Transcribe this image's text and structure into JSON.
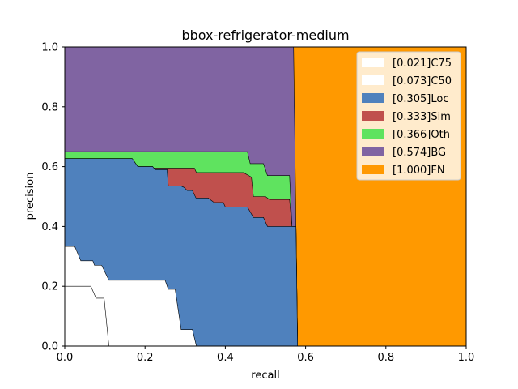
{
  "chart_data": {
    "type": "area",
    "title": "bbox-refrigerator-medium",
    "xlabel": "recall",
    "ylabel": "precision",
    "xlim": [
      0,
      1
    ],
    "ylim": [
      0,
      1
    ],
    "x_ticks": [
      "0.0",
      "0.2",
      "0.4",
      "0.6",
      "0.8",
      "1.0"
    ],
    "y_ticks": [
      "0.0",
      "0.2",
      "0.4",
      "0.6",
      "0.8",
      "1.0"
    ],
    "legend_position": "top-right",
    "series": [
      {
        "name": "[1.000]FN",
        "color": "#ff9900",
        "points": [
          [
            0,
            1
          ],
          [
            1,
            1
          ],
          [
            1,
            0
          ],
          [
            0,
            0
          ]
        ]
      },
      {
        "name": "[0.574]BG",
        "color": "#8064a2",
        "points": [
          [
            0,
            1
          ],
          [
            0.57,
            1
          ],
          [
            0.576,
            0.4
          ],
          [
            0.58,
            0
          ],
          [
            0,
            0
          ]
        ]
      },
      {
        "name": "[0.366]Oth",
        "color": "#5fe35f",
        "points": [
          [
            0,
            0.65
          ],
          [
            0.455,
            0.65
          ],
          [
            0.462,
            0.61
          ],
          [
            0.495,
            0.61
          ],
          [
            0.505,
            0.57
          ],
          [
            0.56,
            0.57
          ],
          [
            0.566,
            0.4
          ],
          [
            0.576,
            0.4
          ],
          [
            0.58,
            0
          ],
          [
            0,
            0
          ]
        ]
      },
      {
        "name": "[0.333]Sim",
        "color": "#c0504d",
        "points": [
          [
            0,
            0.627
          ],
          [
            0.168,
            0.627
          ],
          [
            0.182,
            0.6
          ],
          [
            0.219,
            0.6
          ],
          [
            0.221,
            0.595
          ],
          [
            0.323,
            0.595
          ],
          [
            0.328,
            0.58
          ],
          [
            0.445,
            0.58
          ],
          [
            0.465,
            0.565
          ],
          [
            0.47,
            0.5
          ],
          [
            0.5,
            0.5
          ],
          [
            0.51,
            0.49
          ],
          [
            0.56,
            0.49
          ],
          [
            0.566,
            0.4
          ],
          [
            0.576,
            0.4
          ],
          [
            0.58,
            0
          ],
          [
            0,
            0
          ]
        ]
      },
      {
        "name": "[0.305]Loc",
        "color": "#4f81bd",
        "points": [
          [
            0,
            0.627
          ],
          [
            0.168,
            0.627
          ],
          [
            0.182,
            0.6
          ],
          [
            0.219,
            0.6
          ],
          [
            0.225,
            0.59
          ],
          [
            0.255,
            0.59
          ],
          [
            0.258,
            0.535
          ],
          [
            0.29,
            0.535
          ],
          [
            0.298,
            0.53
          ],
          [
            0.305,
            0.52
          ],
          [
            0.318,
            0.52
          ],
          [
            0.327,
            0.495
          ],
          [
            0.357,
            0.495
          ],
          [
            0.372,
            0.48
          ],
          [
            0.395,
            0.48
          ],
          [
            0.4,
            0.465
          ],
          [
            0.455,
            0.465
          ],
          [
            0.47,
            0.43
          ],
          [
            0.495,
            0.43
          ],
          [
            0.505,
            0.4
          ],
          [
            0.566,
            0.4
          ],
          [
            0.576,
            0.4
          ],
          [
            0.58,
            0
          ],
          [
            0,
            0
          ]
        ]
      },
      {
        "name": "[0.073]C50",
        "color": "#ffffff",
        "points": [
          [
            0,
            0.333
          ],
          [
            0.025,
            0.333
          ],
          [
            0.04,
            0.285
          ],
          [
            0.07,
            0.285
          ],
          [
            0.074,
            0.27
          ],
          [
            0.092,
            0.27
          ],
          [
            0.11,
            0.22
          ],
          [
            0.25,
            0.22
          ],
          [
            0.258,
            0.19
          ],
          [
            0.275,
            0.19
          ],
          [
            0.29,
            0.055
          ],
          [
            0.318,
            0.055
          ],
          [
            0.328,
            0
          ],
          [
            0,
            0
          ]
        ]
      },
      {
        "name": "[0.021]C75",
        "color": "#ffffff",
        "points": [
          [
            0,
            0.2
          ],
          [
            0.065,
            0.2
          ],
          [
            0.078,
            0.16
          ],
          [
            0.098,
            0.16
          ],
          [
            0.11,
            0
          ],
          [
            0,
            0
          ]
        ]
      }
    ]
  }
}
